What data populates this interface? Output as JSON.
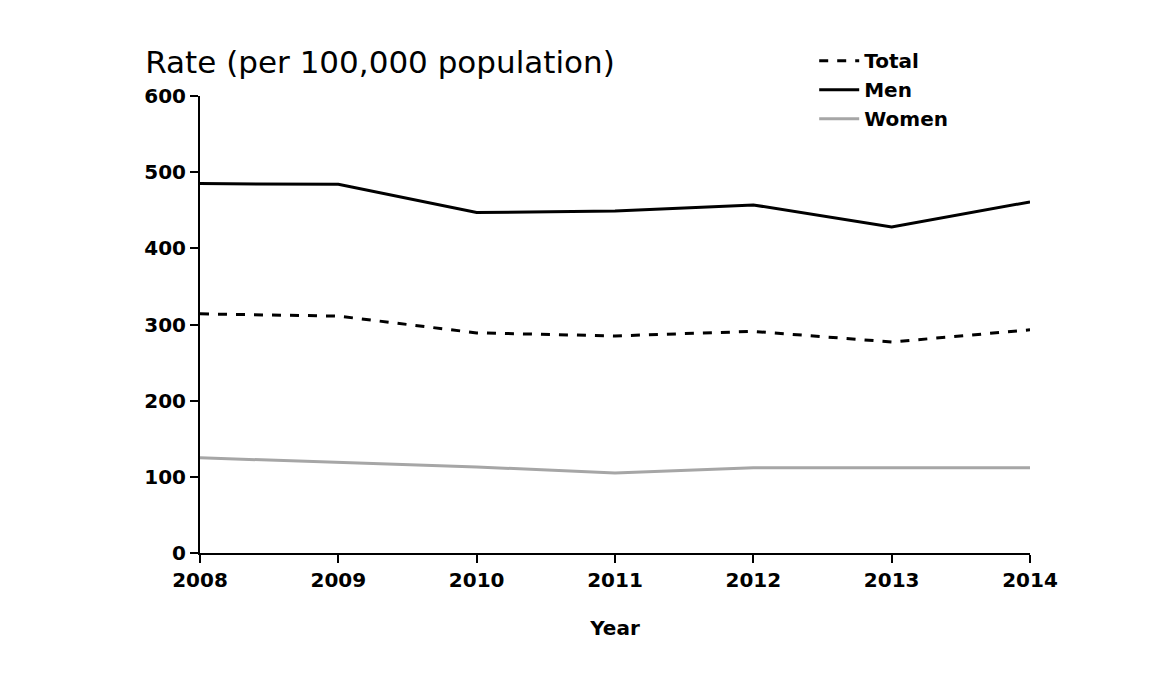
{
  "chart_data": {
    "type": "line",
    "title": "Rate (per 100,000 population)",
    "x_label": "Year",
    "categories": [
      "2008",
      "2009",
      "2010",
      "2011",
      "2012",
      "2013",
      "2014"
    ],
    "series": [
      {
        "name": "Total",
        "color": "#000000",
        "line_style": "dash",
        "values": [
          314,
          311,
          289,
          285,
          291,
          277,
          293
        ]
      },
      {
        "name": "Men",
        "color": "#000000",
        "line_style": "solid",
        "values": [
          485,
          484,
          447,
          449,
          457,
          428,
          461
        ]
      },
      {
        "name": "Women",
        "color": "#a6a6a6",
        "line_style": "solid",
        "values": [
          125,
          119,
          113,
          105,
          112,
          112,
          112
        ]
      }
    ],
    "ylim": [
      0,
      600
    ],
    "yticks": [
      0,
      100,
      200,
      300,
      400,
      500,
      600
    ],
    "grid": false,
    "legend": "top right"
  }
}
